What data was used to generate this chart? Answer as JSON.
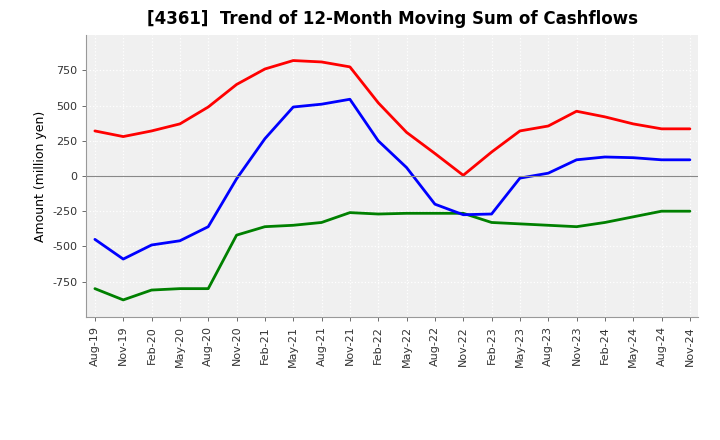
{
  "title": "[4361]  Trend of 12-Month Moving Sum of Cashflows",
  "ylabel": "Amount (million yen)",
  "x_labels": [
    "Aug-19",
    "Nov-19",
    "Feb-20",
    "May-20",
    "Aug-20",
    "Nov-20",
    "Feb-21",
    "May-21",
    "Aug-21",
    "Nov-21",
    "Feb-22",
    "May-22",
    "Aug-22",
    "Nov-22",
    "Feb-23",
    "May-23",
    "Aug-23",
    "Nov-23",
    "Feb-24",
    "May-24",
    "Aug-24",
    "Nov-24"
  ],
  "operating": [
    320,
    280,
    320,
    370,
    490,
    650,
    760,
    820,
    810,
    775,
    520,
    310,
    160,
    5,
    170,
    320,
    355,
    460,
    420,
    370,
    335,
    335
  ],
  "investing": [
    -800,
    -880,
    -810,
    -800,
    -800,
    -420,
    -360,
    -350,
    -330,
    -260,
    -270,
    -265,
    -265,
    -265,
    -330,
    -340,
    -350,
    -360,
    -330,
    -290,
    -250,
    -250
  ],
  "free": [
    -450,
    -590,
    -490,
    -460,
    -360,
    -20,
    265,
    490,
    510,
    545,
    250,
    60,
    -200,
    -275,
    -270,
    -15,
    20,
    115,
    135,
    130,
    115,
    115
  ],
  "operating_color": "#ff0000",
  "investing_color": "#008000",
  "free_color": "#0000ff",
  "ylim": [
    -1000,
    1000
  ],
  "yticks": [
    -750,
    -500,
    -250,
    0,
    250,
    500,
    750
  ],
  "bg_color": "#ffffff",
  "plot_bg_color": "#f0f0f0",
  "grid_color": "#ffffff",
  "linewidth": 2.0,
  "title_fontsize": 12,
  "legend_fontsize": 9,
  "tick_fontsize": 8
}
